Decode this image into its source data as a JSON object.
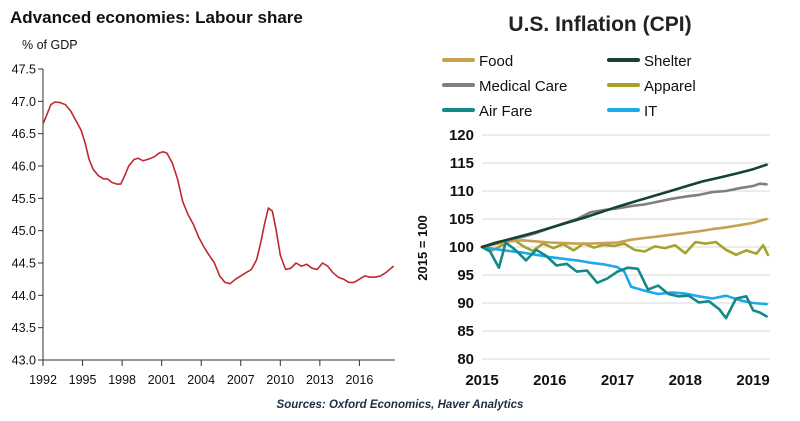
{
  "chart_data": [
    {
      "type": "line",
      "title": "Advanced economies: Labour share",
      "ylabel": "% of GDP",
      "xlabel": "",
      "xlim": [
        1992,
        2018.7
      ],
      "ylim": [
        43.0,
        47.5
      ],
      "yticks": [
        "47.5",
        "47.0",
        "46.5",
        "46.0",
        "45.5",
        "45.0",
        "44.5",
        "44.0",
        "43.5",
        "43.0"
      ],
      "ytick_values": [
        47.5,
        47.0,
        46.5,
        46.0,
        45.5,
        45.0,
        44.5,
        44.0,
        43.5,
        43.0
      ],
      "xticks": [
        "1992",
        "1995",
        "1998",
        "2001",
        "2004",
        "2007",
        "2010",
        "2013",
        "2016"
      ],
      "xtick_values": [
        1992,
        1995,
        1998,
        2001,
        2004,
        2007,
        2010,
        2013,
        2016
      ],
      "grid": false,
      "series": [
        {
          "name": "Labour share",
          "color": "#c0282d",
          "x": [
            1992.0,
            1992.3,
            1992.6,
            1992.9,
            1993.3,
            1993.7,
            1994.1,
            1994.5,
            1994.9,
            1995.2,
            1995.5,
            1995.8,
            1996.2,
            1996.6,
            1996.9,
            1997.2,
            1997.6,
            1997.9,
            1998.2,
            1998.5,
            1998.9,
            1999.2,
            1999.6,
            1999.9,
            2000.2,
            2000.5,
            2000.8,
            2001.1,
            2001.4,
            2001.8,
            2002.2,
            2002.6,
            2003.0,
            2003.4,
            2003.8,
            2004.2,
            2004.6,
            2005.0,
            2005.4,
            2005.8,
            2006.2,
            2006.6,
            2007.0,
            2007.4,
            2007.8,
            2008.2,
            2008.5,
            2008.8,
            2009.1,
            2009.4,
            2009.7,
            2010.0,
            2010.4,
            2010.8,
            2011.2,
            2011.6,
            2012.0,
            2012.4,
            2012.8,
            2013.2,
            2013.6,
            2014.0,
            2014.4,
            2014.8,
            2015.2,
            2015.6,
            2016.0,
            2016.4,
            2016.8,
            2017.2,
            2017.6,
            2018.0,
            2018.4,
            2018.6
          ],
          "y": [
            46.65,
            46.8,
            46.95,
            46.99,
            46.98,
            46.95,
            46.85,
            46.7,
            46.55,
            46.35,
            46.1,
            45.95,
            45.85,
            45.8,
            45.8,
            45.75,
            45.72,
            45.72,
            45.85,
            46.0,
            46.1,
            46.12,
            46.08,
            46.1,
            46.12,
            46.15,
            46.2,
            46.22,
            46.2,
            46.05,
            45.8,
            45.45,
            45.25,
            45.1,
            44.9,
            44.75,
            44.62,
            44.5,
            44.3,
            44.2,
            44.18,
            44.25,
            44.3,
            44.35,
            44.4,
            44.55,
            44.8,
            45.1,
            45.35,
            45.3,
            45.0,
            44.62,
            44.4,
            44.42,
            44.5,
            44.45,
            44.48,
            44.42,
            44.4,
            44.5,
            44.45,
            44.35,
            44.28,
            44.25,
            44.2,
            44.2,
            44.25,
            44.3,
            44.28,
            44.28,
            44.3,
            44.35,
            44.42,
            44.45
          ]
        }
      ]
    },
    {
      "type": "line",
      "title": "U.S. Inflation (CPI)",
      "ylabel": "2015 = 100",
      "xlabel": "",
      "xlim": [
        2015,
        2019.25
      ],
      "ylim": [
        80,
        120
      ],
      "yticks": [
        "120",
        "115",
        "110",
        "105",
        "100",
        "95",
        "90",
        "85",
        "80"
      ],
      "ytick_values": [
        120,
        115,
        110,
        105,
        100,
        95,
        90,
        85,
        80
      ],
      "xticks": [
        "2015",
        "2016",
        "2017",
        "2018",
        "2019"
      ],
      "xtick_values": [
        2015,
        2016,
        2017,
        2018,
        2019
      ],
      "grid": true,
      "legend": "top",
      "series": [
        {
          "name": "Food",
          "color": "#c8a052",
          "x": [
            2015.0,
            2015.2,
            2015.4,
            2015.6,
            2015.8,
            2016.0,
            2016.2,
            2016.4,
            2016.6,
            2016.8,
            2017.0,
            2017.2,
            2017.4,
            2017.6,
            2017.8,
            2018.0,
            2018.2,
            2018.4,
            2018.6,
            2018.8,
            2019.0,
            2019.2
          ],
          "y": [
            100,
            100.5,
            101.0,
            101.2,
            101.0,
            100.8,
            100.7,
            100.6,
            100.6,
            100.7,
            100.8,
            101.3,
            101.6,
            101.9,
            102.2,
            102.5,
            102.8,
            103.2,
            103.5,
            103.9,
            104.3,
            105.0
          ]
        },
        {
          "name": "Shelter",
          "color": "#16432c",
          "x": [
            2015.0,
            2015.25,
            2015.5,
            2015.75,
            2016.0,
            2016.25,
            2016.5,
            2016.75,
            2017.0,
            2017.25,
            2017.5,
            2017.75,
            2018.0,
            2018.25,
            2018.5,
            2018.75,
            2019.0,
            2019.2
          ],
          "y": [
            100,
            100.9,
            101.7,
            102.5,
            103.4,
            104.3,
            105.2,
            106.2,
            107.2,
            108.1,
            109.0,
            109.9,
            110.8,
            111.7,
            112.4,
            113.1,
            113.9,
            114.7
          ]
        },
        {
          "name": "Medical Care",
          "color": "#7f7f7f",
          "x": [
            2015.0,
            2015.2,
            2015.4,
            2015.6,
            2015.8,
            2016.0,
            2016.2,
            2016.4,
            2016.6,
            2016.8,
            2017.0,
            2017.2,
            2017.4,
            2017.6,
            2017.8,
            2018.0,
            2018.2,
            2018.4,
            2018.6,
            2018.8,
            2019.0,
            2019.1,
            2019.2
          ],
          "y": [
            100,
            100.8,
            101.3,
            101.8,
            102.5,
            103.4,
            104.2,
            105.0,
            106.2,
            106.6,
            106.9,
            107.3,
            107.6,
            108.1,
            108.6,
            109.0,
            109.3,
            109.8,
            110.0,
            110.5,
            110.9,
            111.3,
            111.2
          ]
        },
        {
          "name": "Apparel",
          "color": "#a6a32c",
          "x": [
            2015.0,
            2015.15,
            2015.3,
            2015.45,
            2015.6,
            2015.75,
            2015.9,
            2016.05,
            2016.2,
            2016.35,
            2016.5,
            2016.65,
            2016.8,
            2016.95,
            2017.1,
            2017.25,
            2017.4,
            2017.55,
            2017.7,
            2017.85,
            2018.0,
            2018.15,
            2018.3,
            2018.45,
            2018.6,
            2018.75,
            2018.9,
            2019.05,
            2019.15,
            2019.22
          ],
          "y": [
            100,
            99.4,
            100.3,
            101.5,
            100.2,
            99.3,
            100.6,
            99.8,
            100.5,
            99.4,
            100.6,
            99.9,
            100.4,
            100.2,
            100.6,
            99.5,
            99.2,
            100.1,
            99.8,
            100.3,
            98.9,
            100.9,
            100.6,
            100.9,
            99.5,
            98.6,
            99.4,
            98.8,
            100.3,
            98.6
          ]
        },
        {
          "name": "Air Fare",
          "color": "#138a86",
          "x": [
            2015.0,
            2015.12,
            2015.25,
            2015.35,
            2015.5,
            2015.65,
            2015.8,
            2015.95,
            2016.1,
            2016.25,
            2016.4,
            2016.55,
            2016.7,
            2016.85,
            2017.0,
            2017.15,
            2017.3,
            2017.45,
            2017.6,
            2017.75,
            2017.9,
            2018.05,
            2018.2,
            2018.35,
            2018.5,
            2018.6,
            2018.75,
            2018.9,
            2019.0,
            2019.1,
            2019.2
          ],
          "y": [
            100,
            99.2,
            96.3,
            100.8,
            99.4,
            97.6,
            99.5,
            98.4,
            96.7,
            97.0,
            95.6,
            95.8,
            93.6,
            94.4,
            95.6,
            96.3,
            96.1,
            92.4,
            93.1,
            91.6,
            91.2,
            91.3,
            90.1,
            90.3,
            88.9,
            87.3,
            90.8,
            91.2,
            88.7,
            88.3,
            87.6
          ]
        },
        {
          "name": "IT",
          "color": "#1ea9ee",
          "x": [
            2015.0,
            2015.2,
            2015.4,
            2015.6,
            2015.8,
            2016.0,
            2016.2,
            2016.4,
            2016.6,
            2016.8,
            2017.0,
            2017.1,
            2017.2,
            2017.4,
            2017.6,
            2017.8,
            2018.0,
            2018.2,
            2018.4,
            2018.6,
            2018.8,
            2019.0,
            2019.2
          ],
          "y": [
            100,
            99.6,
            99.3,
            99.0,
            98.6,
            98.2,
            97.9,
            97.6,
            97.2,
            96.9,
            96.4,
            95.6,
            92.9,
            92.2,
            91.6,
            91.9,
            91.7,
            91.2,
            90.8,
            91.3,
            90.5,
            90.0,
            89.8
          ]
        }
      ]
    }
  ],
  "source_text": "Sources: Oxford Economics, Haver Analytics"
}
